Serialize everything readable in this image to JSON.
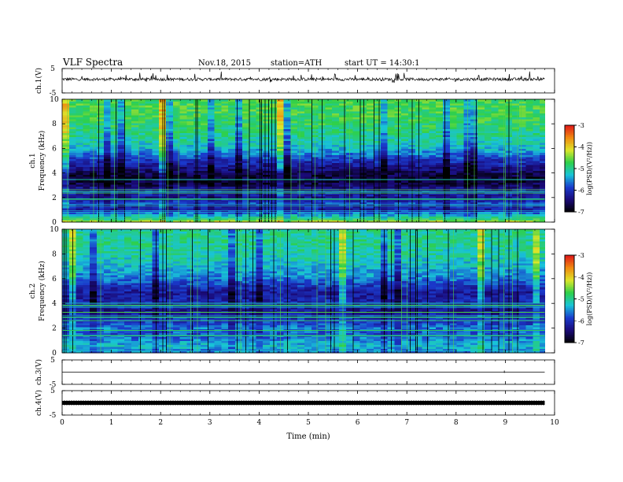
{
  "header": {
    "title": "VLF  Spectra",
    "date": "Nov.18, 2015",
    "station": "station=ATH",
    "start": "start  UT  =    14:30:1"
  },
  "colors": {
    "background": "#ffffff",
    "frame": "#000000",
    "colormap": [
      "#000000",
      "#1a0a78",
      "#1a3acc",
      "#18c4d8",
      "#2ed04a",
      "#dce62a",
      "#f08a10",
      "#e01818",
      "#ffffff"
    ]
  },
  "chart_data": [
    {
      "type": "line",
      "panel": "ch1-waveform",
      "ylabel": "ch.1(V)",
      "yticks": [
        "5",
        "-5"
      ],
      "ylim": [
        -5,
        5
      ],
      "baseline": 0.6,
      "xlim": [
        0,
        10
      ],
      "x_end": 9.8
    },
    {
      "type": "heatmap",
      "panel": "ch1-spectrogram",
      "ylabel": "ch.1\nFrequency  (kHz)",
      "yticks": [
        "0",
        "2",
        "4",
        "6",
        "8",
        "10"
      ],
      "ylim": [
        0,
        10
      ],
      "xlim": [
        0,
        10
      ],
      "x_end": 9.8,
      "colorbar": {
        "label": "log(PSD/(V²/Hz))",
        "ticks": [
          "-3",
          "-4",
          "-5",
          "-6",
          "-7"
        ],
        "range": [
          -7,
          -3
        ]
      },
      "band_profile": [
        {
          "f": 0.0,
          "level": -4.2
        },
        {
          "f": 0.5,
          "level": -5.2
        },
        {
          "f": 1.0,
          "level": -6.2
        },
        {
          "f": 1.5,
          "level": -5.8
        },
        {
          "f": 2.0,
          "level": -6.3
        },
        {
          "f": 2.5,
          "level": -6.0
        },
        {
          "f": 3.0,
          "level": -6.6
        },
        {
          "f": 3.5,
          "level": -6.8
        },
        {
          "f": 4.0,
          "level": -6.6
        },
        {
          "f": 5.0,
          "level": -6.0
        },
        {
          "f": 6.0,
          "level": -5.3
        },
        {
          "f": 7.0,
          "level": -5.0
        },
        {
          "f": 8.0,
          "level": -4.8
        },
        {
          "f": 9.0,
          "level": -4.7
        },
        {
          "f": 10.0,
          "level": -4.7
        }
      ]
    },
    {
      "type": "heatmap",
      "panel": "ch2-spectrogram",
      "ylabel": "ch.2\nFrequency  (kHz)",
      "yticks": [
        "0",
        "2",
        "4",
        "6",
        "8",
        "10"
      ],
      "ylim": [
        0,
        10
      ],
      "xlim": [
        0,
        10
      ],
      "x_end": 9.8,
      "colorbar": {
        "label": "log(PSD/(V²/Hz))",
        "ticks": [
          "-3",
          "-4",
          "-5",
          "-6",
          "-7"
        ],
        "range": [
          -7,
          -3
        ]
      },
      "band_profile": [
        {
          "f": 0.0,
          "level": -5.6
        },
        {
          "f": 0.5,
          "level": -5.3
        },
        {
          "f": 1.0,
          "level": -5.5
        },
        {
          "f": 1.5,
          "level": -5.8
        },
        {
          "f": 2.0,
          "level": -5.6
        },
        {
          "f": 2.5,
          "level": -5.9
        },
        {
          "f": 3.0,
          "level": -6.1
        },
        {
          "f": 3.5,
          "level": -6.3
        },
        {
          "f": 4.0,
          "level": -6.1
        },
        {
          "f": 5.0,
          "level": -6.2
        },
        {
          "f": 6.0,
          "level": -5.6
        },
        {
          "f": 7.0,
          "level": -5.3
        },
        {
          "f": 8.0,
          "level": -5.1
        },
        {
          "f": 9.0,
          "level": -5.0
        },
        {
          "f": 10.0,
          "level": -5.0
        }
      ]
    },
    {
      "type": "line",
      "panel": "ch3-waveform",
      "ylabel": "ch.3(V)",
      "yticks": [
        "5",
        "-5"
      ],
      "ylim": [
        -5,
        5
      ],
      "baseline": 0.0,
      "xlim": [
        0,
        10
      ],
      "x_end": 9.8
    },
    {
      "type": "line",
      "panel": "ch4-waveform",
      "ylabel": "ch.4(V)",
      "yticks": [
        "5",
        "-5"
      ],
      "ylim": [
        -5,
        5
      ],
      "baseline": 0.0,
      "xlim": [
        0,
        10
      ],
      "x_end": 9.8
    }
  ],
  "xaxis": {
    "label": "Time  (min)",
    "ticks": [
      "0",
      "1",
      "2",
      "3",
      "4",
      "5",
      "6",
      "7",
      "8",
      "9",
      "10"
    ]
  }
}
